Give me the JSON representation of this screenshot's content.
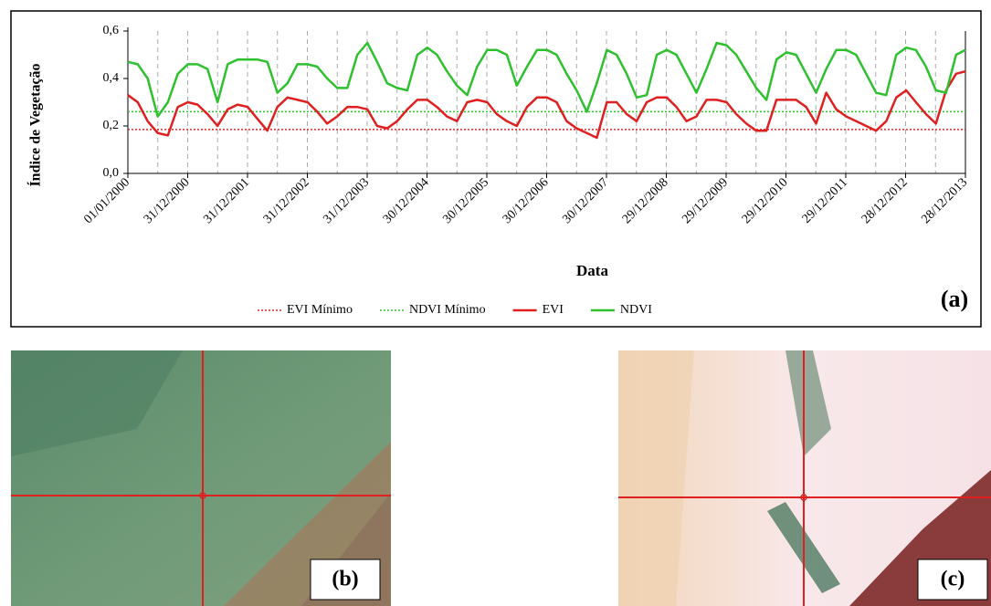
{
  "chart_data": {
    "type": "line",
    "ylabel": "Índice de Vegetação",
    "xlabel": "Data",
    "panel_label": "(a)",
    "xlim": [
      "01/01/2000",
      "28/12/2013"
    ],
    "xticks": [
      "01/01/2000",
      "31/12/2000",
      "31/12/2001",
      "31/12/2002",
      "31/12/2003",
      "30/12/2004",
      "30/12/2005",
      "30/12/2006",
      "30/12/2007",
      "29/12/2008",
      "29/12/2009",
      "29/12/2010",
      "29/12/2011",
      "28/12/2012",
      "28/12/2013"
    ],
    "ylim": [
      0,
      0.6
    ],
    "yticks": [
      {
        "value": 0,
        "label": "0,0"
      },
      {
        "value": 0.2,
        "label": "0,2"
      },
      {
        "value": 0.4,
        "label": "0,4"
      },
      {
        "value": 0.6,
        "label": "0,6"
      }
    ],
    "grid": true,
    "reference_lines": [
      {
        "name": "EVI Mínimo",
        "color": "#e02020",
        "value": 0.185
      },
      {
        "name": "NDVI Mínimo",
        "color": "#2ec02e",
        "value": 0.26
      }
    ],
    "x": [
      "01/01/2000",
      "01/03/2000",
      "01/05/2000",
      "01/07/2000",
      "01/09/2000",
      "01/11/2000",
      "01/01/2001",
      "01/03/2001",
      "01/05/2001",
      "01/07/2001",
      "01/09/2001",
      "01/11/2001",
      "01/01/2002",
      "01/03/2002",
      "01/05/2002",
      "01/07/2002",
      "01/09/2002",
      "01/11/2002",
      "01/01/2003",
      "01/03/2003",
      "01/05/2003",
      "01/07/2003",
      "01/09/2003",
      "01/11/2003",
      "01/01/2004",
      "01/03/2004",
      "01/05/2004",
      "01/07/2004",
      "01/09/2004",
      "01/11/2004",
      "01/01/2005",
      "01/03/2005",
      "01/05/2005",
      "01/07/2005",
      "01/09/2005",
      "01/11/2005",
      "01/01/2006",
      "01/03/2006",
      "01/05/2006",
      "01/07/2006",
      "01/09/2006",
      "01/11/2006",
      "01/01/2007",
      "01/03/2007",
      "01/05/2007",
      "01/07/2007",
      "01/09/2007",
      "01/11/2007",
      "01/01/2008",
      "01/03/2008",
      "01/05/2008",
      "01/07/2008",
      "01/09/2008",
      "01/11/2008",
      "01/01/2009",
      "01/03/2009",
      "01/05/2009",
      "01/07/2009",
      "01/09/2009",
      "01/11/2009",
      "01/01/2010",
      "01/03/2010",
      "01/05/2010",
      "01/07/2010",
      "01/09/2010",
      "01/11/2010",
      "01/01/2011",
      "01/03/2011",
      "01/05/2011",
      "01/07/2011",
      "01/09/2011",
      "01/11/2011",
      "01/01/2012",
      "01/03/2012",
      "01/05/2012",
      "01/07/2012",
      "01/09/2012",
      "01/11/2012",
      "01/01/2013",
      "01/03/2013",
      "01/05/2013",
      "01/07/2013",
      "01/09/2013",
      "01/11/2013",
      "28/12/2013"
    ],
    "series": [
      {
        "name": "EVI",
        "color": "#e02020",
        "values": [
          0.33,
          0.3,
          0.22,
          0.17,
          0.16,
          0.28,
          0.3,
          0.29,
          0.25,
          0.2,
          0.27,
          0.29,
          0.28,
          0.23,
          0.18,
          0.28,
          0.32,
          0.31,
          0.3,
          0.26,
          0.21,
          0.24,
          0.28,
          0.28,
          0.27,
          0.2,
          0.19,
          0.22,
          0.27,
          0.31,
          0.31,
          0.28,
          0.24,
          0.22,
          0.3,
          0.31,
          0.3,
          0.25,
          0.22,
          0.2,
          0.28,
          0.32,
          0.32,
          0.3,
          0.22,
          0.19,
          0.17,
          0.15,
          0.3,
          0.3,
          0.25,
          0.22,
          0.3,
          0.32,
          0.32,
          0.28,
          0.22,
          0.24,
          0.31,
          0.31,
          0.3,
          0.25,
          0.21,
          0.18,
          0.18,
          0.31,
          0.31,
          0.31,
          0.28,
          0.21,
          0.34,
          0.27,
          0.24,
          0.22,
          0.2,
          0.18,
          0.22,
          0.32,
          0.35,
          0.3,
          0.25,
          0.21,
          0.35,
          0.42,
          0.43
        ]
      },
      {
        "name": "NDVI",
        "color": "#2ec02e",
        "values": [
          0.47,
          0.46,
          0.4,
          0.24,
          0.3,
          0.42,
          0.46,
          0.46,
          0.44,
          0.3,
          0.46,
          0.48,
          0.48,
          0.48,
          0.47,
          0.34,
          0.38,
          0.46,
          0.46,
          0.45,
          0.4,
          0.36,
          0.36,
          0.5,
          0.55,
          0.47,
          0.38,
          0.36,
          0.35,
          0.5,
          0.53,
          0.5,
          0.43,
          0.37,
          0.33,
          0.45,
          0.52,
          0.52,
          0.5,
          0.37,
          0.45,
          0.52,
          0.52,
          0.5,
          0.42,
          0.35,
          0.26,
          0.38,
          0.52,
          0.5,
          0.42,
          0.32,
          0.33,
          0.5,
          0.52,
          0.5,
          0.42,
          0.34,
          0.44,
          0.55,
          0.54,
          0.5,
          0.43,
          0.36,
          0.31,
          0.48,
          0.51,
          0.5,
          0.42,
          0.34,
          0.44,
          0.52,
          0.52,
          0.5,
          0.42,
          0.34,
          0.33,
          0.5,
          0.53,
          0.52,
          0.45,
          0.35,
          0.34,
          0.5,
          0.52
        ]
      }
    ]
  },
  "images": [
    {
      "label": "(b)"
    },
    {
      "label": "(c)"
    }
  ]
}
